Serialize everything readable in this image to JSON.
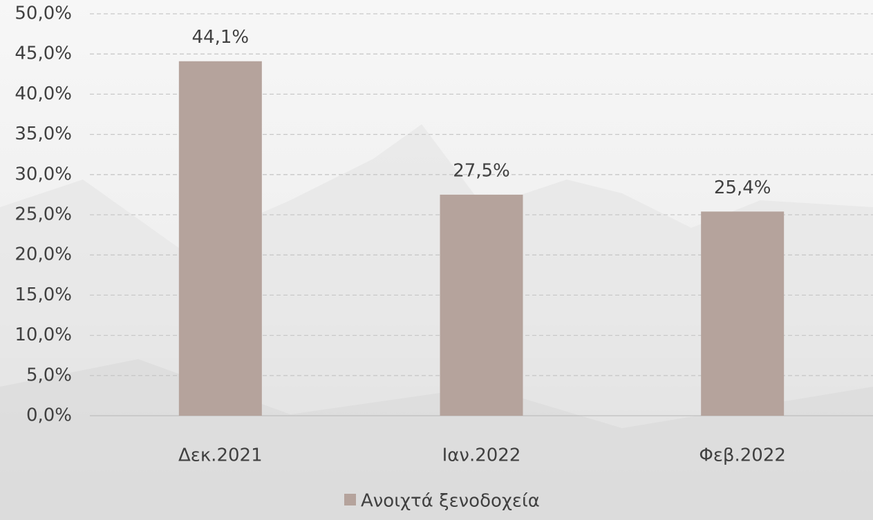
{
  "chart_data": {
    "type": "bar",
    "categories": [
      "Δεκ.2021",
      "Ιαν.2022",
      "Φεβ.2022"
    ],
    "series": [
      {
        "name": "Ανοιχτά ξενοδοχεία",
        "color": "#b5a39c",
        "values": [
          44.1,
          27.5,
          25.4
        ],
        "value_labels": [
          "44,1%",
          "27,5%",
          "25,4%"
        ]
      }
    ],
    "ylim": [
      0,
      50
    ],
    "yticks": [
      {
        "value": 0,
        "label": "0,0%"
      },
      {
        "value": 5,
        "label": "5,0%"
      },
      {
        "value": 10,
        "label": "10,0%"
      },
      {
        "value": 15,
        "label": "15,0%"
      },
      {
        "value": 20,
        "label": "20,0%"
      },
      {
        "value": 25,
        "label": "25,0%"
      },
      {
        "value": 30,
        "label": "30,0%"
      },
      {
        "value": 35,
        "label": "35,0%"
      },
      {
        "value": 40,
        "label": "40,0%"
      },
      {
        "value": 45,
        "label": "45,0%"
      },
      {
        "value": 50,
        "label": "50,0%"
      }
    ],
    "grid": true,
    "legend": "bottom"
  }
}
